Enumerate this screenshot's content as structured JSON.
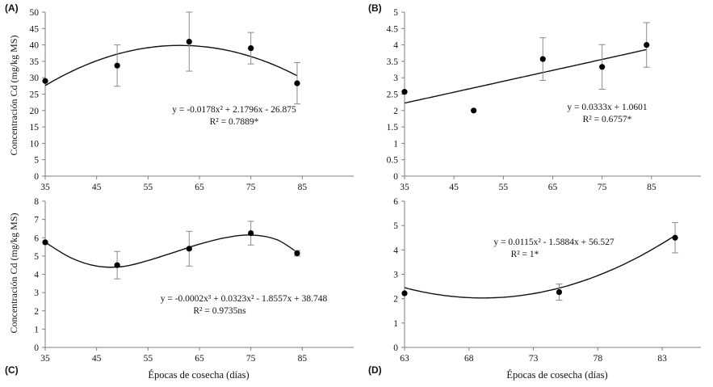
{
  "figure": {
    "ylabel": "Concentración Cd (mg/kg MS)",
    "xlabel": "Épocas de cosecha (días)"
  },
  "chart_data": [
    {
      "id": "A",
      "panel_label": "(A)",
      "type": "scatter",
      "fit": "quadratic",
      "xlim": [
        35,
        95
      ],
      "xticks": [
        35,
        45,
        55,
        65,
        75,
        85
      ],
      "ylim": [
        0,
        50
      ],
      "yticks": [
        0,
        5,
        10,
        15,
        20,
        25,
        30,
        35,
        40,
        45,
        50
      ],
      "points": [
        {
          "x": 35,
          "y": 29,
          "err": 0
        },
        {
          "x": 49,
          "y": 33.7,
          "err": 6.3
        },
        {
          "x": 63,
          "y": 41,
          "err": 9
        },
        {
          "x": 75,
          "y": 39,
          "err": 4.8
        },
        {
          "x": 84,
          "y": 28.3,
          "err": 6.3
        }
      ],
      "coefficients": [
        -26.875,
        2.1796,
        -0.0178
      ],
      "fit_range": [
        35,
        84
      ],
      "equation": "y = -0.0178x² + 2.1796x - 26.875",
      "r2": "R² = 0.7889*"
    },
    {
      "id": "B",
      "panel_label": "(B)",
      "type": "scatter",
      "fit": "linear",
      "xlim": [
        35,
        95
      ],
      "xticks": [
        35,
        45,
        55,
        65,
        75,
        85
      ],
      "ylim": [
        0,
        5
      ],
      "yticks": [
        0,
        0.5,
        1,
        1.5,
        2,
        2.5,
        3,
        3.5,
        4,
        4.5,
        5
      ],
      "points": [
        {
          "x": 35,
          "y": 2.57,
          "err": 0
        },
        {
          "x": 49,
          "y": 2.0,
          "err": 0
        },
        {
          "x": 63,
          "y": 3.57,
          "err": 0.65
        },
        {
          "x": 75,
          "y": 3.33,
          "err": 0.68
        },
        {
          "x": 84,
          "y": 4.0,
          "err": 0.68
        }
      ],
      "coefficients": [
        1.0601,
        0.0333
      ],
      "fit_range": [
        35,
        84
      ],
      "equation": "y = 0.0333x + 1.0601",
      "r2": "R² = 0.6757*"
    },
    {
      "id": "C",
      "panel_label": "(C)",
      "type": "scatter",
      "fit": "cubic",
      "xlim": [
        35,
        95
      ],
      "xticks": [
        35,
        45,
        55,
        65,
        75,
        85
      ],
      "ylim": [
        0,
        8
      ],
      "yticks": [
        0,
        1,
        2,
        3,
        4,
        5,
        6,
        7,
        8
      ],
      "points": [
        {
          "x": 35,
          "y": 5.75,
          "err": 0
        },
        {
          "x": 49,
          "y": 4.5,
          "err": 0.75
        },
        {
          "x": 63,
          "y": 5.4,
          "err": 0.95
        },
        {
          "x": 75,
          "y": 6.25,
          "err": 0.65
        },
        {
          "x": 84,
          "y": 5.15,
          "err": 0.15
        }
      ],
      "curve_through": [
        {
          "x": 35,
          "y": 5.75
        },
        {
          "x": 40,
          "y": 4.9
        },
        {
          "x": 45,
          "y": 4.45
        },
        {
          "x": 50,
          "y": 4.42
        },
        {
          "x": 55,
          "y": 4.75
        },
        {
          "x": 60,
          "y": 5.2
        },
        {
          "x": 65,
          "y": 5.65
        },
        {
          "x": 70,
          "y": 6.0
        },
        {
          "x": 75,
          "y": 6.15
        },
        {
          "x": 80,
          "y": 5.9
        },
        {
          "x": 84,
          "y": 5.2
        }
      ],
      "equation": "y = -0.0002x³ + 0.0323x² - 1.8557x + 38.748",
      "r2": "R² = 0.9735ns"
    },
    {
      "id": "D",
      "panel_label": "(D)",
      "type": "scatter",
      "fit": "quadratic",
      "xlim": [
        63,
        86
      ],
      "xticks": [
        63,
        68,
        73,
        78,
        83
      ],
      "ylim": [
        0,
        6
      ],
      "yticks": [
        0,
        1,
        2,
        3,
        4,
        5,
        6
      ],
      "points": [
        {
          "x": 63,
          "y": 2.22,
          "err": 0
        },
        {
          "x": 75,
          "y": 2.27,
          "err": 0.33
        },
        {
          "x": 84,
          "y": 4.5,
          "err": 0.62
        }
      ],
      "coefficients": [
        56.527,
        -1.5884,
        0.0115
      ],
      "fit_range": [
        63,
        84
      ],
      "curve_shift": 0.35,
      "equation": "y = 0.0115x² - 1.5884x + 56.527",
      "r2": "R² = 1*"
    }
  ]
}
